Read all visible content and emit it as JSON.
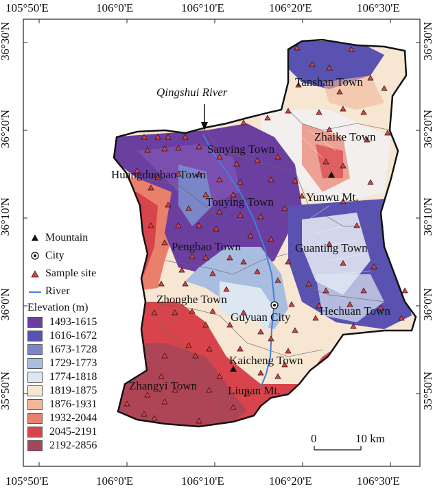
{
  "axes": {
    "top_ticks": [
      "105°50'E",
      "106°0'E",
      "106°10'E",
      "106°20'E",
      "106°30'E"
    ],
    "bottom_ticks": [
      "105°50'E",
      "106°0'E",
      "106°10'E",
      "106°20'E",
      "106°30'E"
    ],
    "left_ticks": [
      "36°30'N",
      "36°20'N",
      "36°10'N",
      "36°0'N",
      "35°50'N"
    ],
    "right_ticks": [
      "36°30'N",
      "36°20'N",
      "36°10'N",
      "36°0'N",
      "35°50'N"
    ]
  },
  "places": {
    "qingshui_river": "Qingshui River",
    "tanshan": "Tanshan Town",
    "sanying": "Sanying Town",
    "zhaike": "Zhaike Town",
    "huangduobao": "Huangduobao Town",
    "touying": "Touying Town",
    "yunwu": "Yunwu Mt.",
    "pengbao": "Pengbao Town",
    "guanting": "Guanting Town",
    "zhonghe": "Zhonghe Town",
    "guyuan": "Guyuan City",
    "hechuan": "Hechuan Town",
    "kaicheng": "Kaicheng Town",
    "zhangyi": "Zhangyi Town",
    "liupan": "Liupan Mt."
  },
  "legend": {
    "mountain": "Mountain",
    "city": "City",
    "sample_site": "Sample site",
    "river": "River",
    "elevation_title": "Elevation (m)",
    "classes": [
      {
        "label": "1493-1615",
        "color": "#6b3fa0"
      },
      {
        "label": "1616-1672",
        "color": "#5a52b0"
      },
      {
        "label": "1673-1728",
        "color": "#7a86c8"
      },
      {
        "label": "1729-1773",
        "color": "#a9bde0"
      },
      {
        "label": "1774-1818",
        "color": "#dce7f2"
      },
      {
        "label": "1819-1875",
        "color": "#f6e6d2"
      },
      {
        "label": "1876-1931",
        "color": "#f2b79a"
      },
      {
        "label": "1932-2044",
        "color": "#e8806c"
      },
      {
        "label": "2045-2191",
        "color": "#d8444c"
      },
      {
        "label": "2192-2856",
        "color": "#a4465a"
      }
    ]
  },
  "scalebar": {
    "zero": "0",
    "ten": "10 km"
  }
}
